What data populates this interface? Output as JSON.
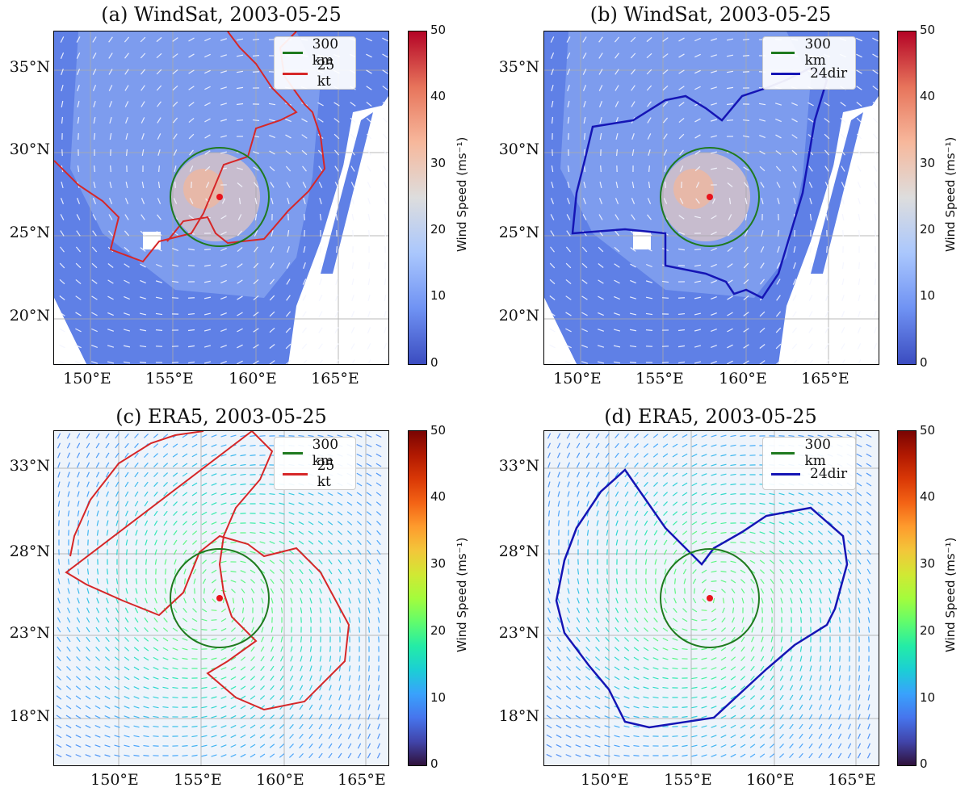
{
  "panels": [
    {
      "id": "a",
      "title": "(a) WindSat, 2003-05-25",
      "scheme": "windsat",
      "yticks": [
        "35°N",
        "30°N",
        "25°N",
        "20°N"
      ],
      "xticks": [
        "150°E",
        "155°E",
        "160°E",
        "165°E"
      ],
      "legend": [
        {
          "label": "300 km",
          "color": "#1f7a1f"
        },
        {
          "label": "25 kt",
          "color": "#d62728"
        }
      ],
      "contour": "25kt",
      "colorbar": {
        "ticks": [
          "50",
          "40",
          "30",
          "20",
          "10",
          "0"
        ],
        "label": "Wind Speed (ms⁻¹)"
      }
    },
    {
      "id": "b",
      "title": "(b) WindSat, 2003-05-25",
      "scheme": "windsat",
      "yticks": [
        "35°N",
        "30°N",
        "25°N",
        "20°N"
      ],
      "xticks": [
        "150°E",
        "155°E",
        "160°E",
        "165°E"
      ],
      "legend": [
        {
          "label": "300 km",
          "color": "#1f7a1f"
        },
        {
          "label": "24dir",
          "color": "#1515b5"
        }
      ],
      "contour": "24dir",
      "colorbar": {
        "ticks": [
          "50",
          "40",
          "30",
          "20",
          "10",
          "0"
        ],
        "label": "Wind Speed (ms⁻¹)"
      }
    },
    {
      "id": "c",
      "title": "(c) ERA5, 2003-05-25",
      "scheme": "era5",
      "yticks": [
        "33°N",
        "28°N",
        "23°N",
        "18°N"
      ],
      "xticks": [
        "150°E",
        "155°E",
        "160°E",
        "165°E"
      ],
      "legend": [
        {
          "label": "300 km",
          "color": "#1f7a1f"
        },
        {
          "label": "25 kt",
          "color": "#d62728"
        }
      ],
      "contour": "25kt",
      "colorbar": {
        "ticks": [
          "50",
          "40",
          "30",
          "20",
          "10",
          "0"
        ],
        "label": "Wind Speed (ms⁻¹)"
      }
    },
    {
      "id": "d",
      "title": "(d) ERA5, 2003-05-25",
      "scheme": "era5",
      "yticks": [
        "33°N",
        "28°N",
        "23°N",
        "18°N"
      ],
      "xticks": [
        "150°E",
        "155°E",
        "160°E",
        "165°E"
      ],
      "legend": [
        {
          "label": "300 km",
          "color": "#1f7a1f"
        },
        {
          "label": "24dir",
          "color": "#1515b5"
        }
      ],
      "contour": "24dir",
      "colorbar": {
        "ticks": [
          "50",
          "40",
          "30",
          "20",
          "10",
          "0"
        ],
        "label": "Wind Speed (ms⁻¹)"
      }
    }
  ]
}
